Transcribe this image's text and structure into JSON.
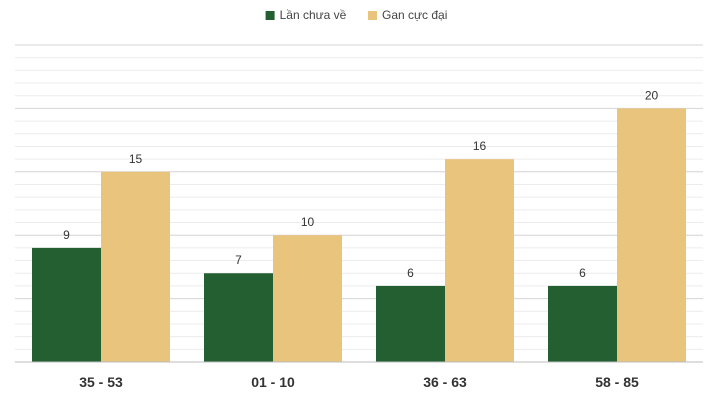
{
  "chart_data": {
    "type": "bar",
    "categories": [
      "35 - 53",
      "01 - 10",
      "36 - 63",
      "58 - 85"
    ],
    "series": [
      {
        "name": "Lần chưa về",
        "color": "#245f31",
        "values": [
          9,
          7,
          6,
          6
        ]
      },
      {
        "name": "Gan cực đại",
        "color": "#e8c47c",
        "values": [
          15,
          10,
          16,
          20
        ]
      }
    ],
    "ylim": [
      0,
      25
    ],
    "legend_position": "top-center",
    "grid": true,
    "show_data_labels": true
  }
}
